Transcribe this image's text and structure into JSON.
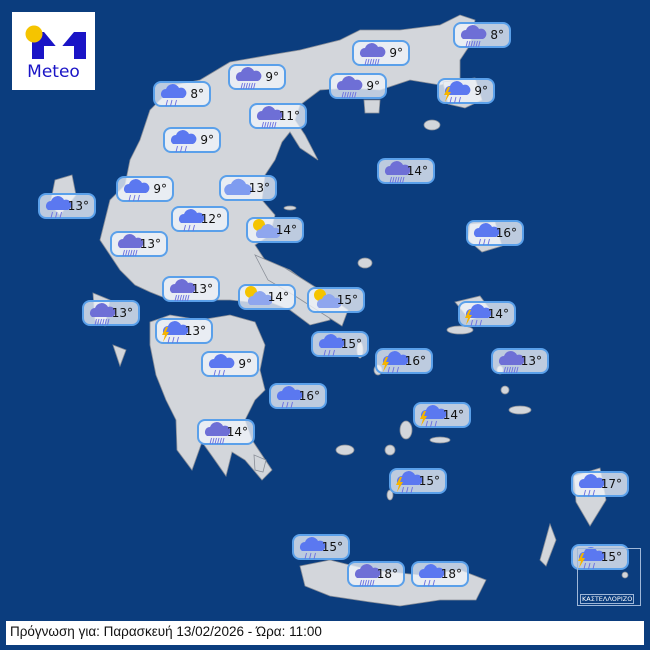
{
  "logo": {
    "text": "Meteo",
    "brand_color": "#1a14c6",
    "sun_color": "#f5c400"
  },
  "colors": {
    "sea": "#0b3d7e",
    "land": "#d3d6db",
    "badge_border": "#5aa0ea"
  },
  "inset_label": "ΚΑΣΤΕΛΛΟΡΙΖΟ",
  "forecast_bar": {
    "text": "Πρόγνωση για: Παρασκευή 13/02/2026 - Ώρα:  11:00"
  },
  "stations": [
    {
      "temp": "8°",
      "icon": "rain"
    },
    {
      "temp": "9°",
      "icon": "heavy-rain"
    },
    {
      "temp": "11°",
      "icon": "heavy-rain"
    },
    {
      "temp": "9°",
      "icon": "rain"
    },
    {
      "temp": "9°",
      "icon": "heavy-rain"
    },
    {
      "temp": "9°",
      "icon": "heavy-rain"
    },
    {
      "temp": "8°",
      "icon": "heavy-rain"
    },
    {
      "temp": "9°",
      "icon": "thunderstorm"
    },
    {
      "temp": "9°",
      "icon": "rain"
    },
    {
      "temp": "13°",
      "icon": "cloud"
    },
    {
      "temp": "13°",
      "icon": "rain"
    },
    {
      "temp": "12°",
      "icon": "rain"
    },
    {
      "temp": "14°",
      "icon": "partly-cloudy"
    },
    {
      "temp": "13°",
      "icon": "heavy-rain"
    },
    {
      "temp": "14°",
      "icon": "heavy-rain"
    },
    {
      "temp": "16°",
      "icon": "rain"
    },
    {
      "temp": "13°",
      "icon": "heavy-rain"
    },
    {
      "temp": "14°",
      "icon": "partly-cloudy"
    },
    {
      "temp": "15°",
      "icon": "partly-cloudy"
    },
    {
      "temp": "13°",
      "icon": "heavy-rain"
    },
    {
      "temp": "13°",
      "icon": "thunderstorm"
    },
    {
      "temp": "15°",
      "icon": "rain"
    },
    {
      "temp": "16°",
      "icon": "thunderstorm"
    },
    {
      "temp": "13°",
      "icon": "heavy-rain"
    },
    {
      "temp": "14°",
      "icon": "thunderstorm"
    },
    {
      "temp": "9°",
      "icon": "rain"
    },
    {
      "temp": "16°",
      "icon": "rain"
    },
    {
      "temp": "14°",
      "icon": "thunderstorm"
    },
    {
      "temp": "14°",
      "icon": "heavy-rain"
    },
    {
      "temp": "15°",
      "icon": "thunderstorm"
    },
    {
      "temp": "17°",
      "icon": "rain"
    },
    {
      "temp": "15°",
      "icon": "rain"
    },
    {
      "temp": "15°",
      "icon": "thunderstorm"
    },
    {
      "temp": "18°",
      "icon": "heavy-rain"
    },
    {
      "temp": "18°",
      "icon": "rain"
    }
  ]
}
